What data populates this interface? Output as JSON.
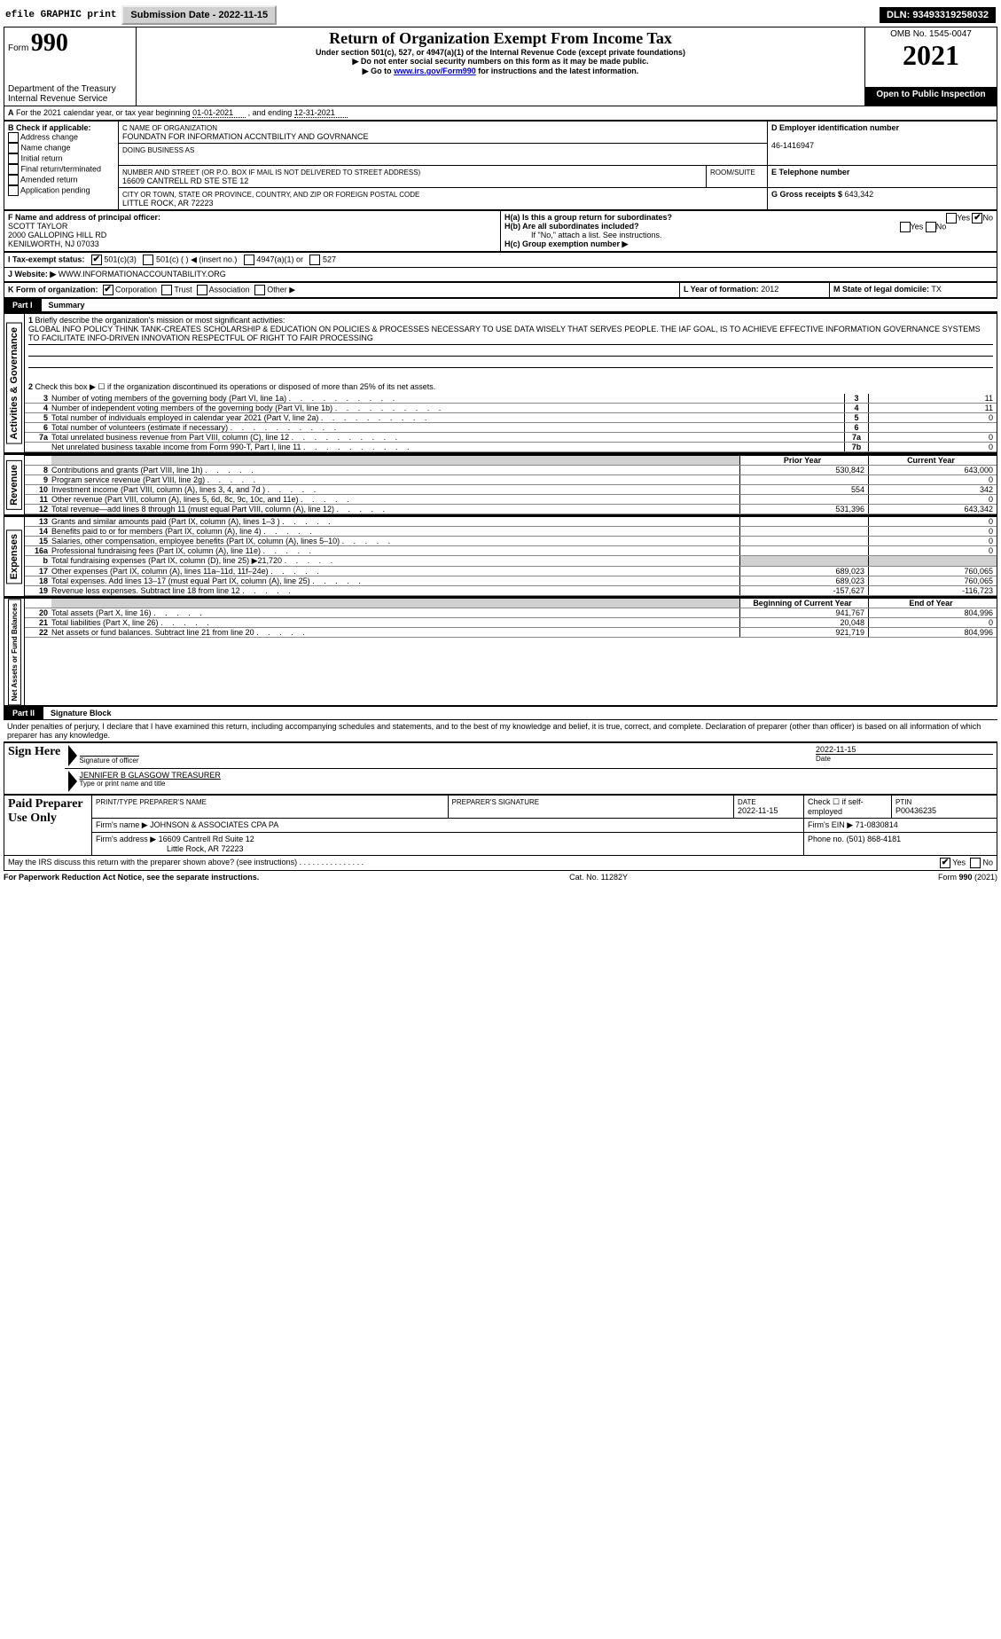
{
  "top": {
    "efile": "efile GRAPHIC print",
    "submission_btn": "Submission Date - 2022-11-15",
    "dln": "DLN: 93493319258032"
  },
  "header": {
    "form_prefix": "Form",
    "form_num": "990",
    "dept": "Department of the Treasury",
    "irs": "Internal Revenue Service",
    "title": "Return of Organization Exempt From Income Tax",
    "subtitle": "Under section 501(c), 527, or 4947(a)(1) of the Internal Revenue Code (except private foundations)",
    "note1": "▶ Do not enter social security numbers on this form as it may be made public.",
    "note2": "▶ Go to ",
    "irs_link": "www.irs.gov/Form990",
    "note2b": " for instructions and the latest information.",
    "omb": "OMB No. 1545-0047",
    "year": "2021",
    "open": "Open to Public Inspection"
  },
  "taxyear": {
    "line": "For the 2021 calendar year, or tax year beginning ",
    "begin": "01-01-2021",
    "mid": " , and ending ",
    "end": "12-31-2021"
  },
  "boxB": {
    "label": "B Check if applicable:",
    "opts": [
      "Address change",
      "Name change",
      "Initial return",
      "Final return/terminated",
      "Amended return",
      "Application pending"
    ]
  },
  "boxC": {
    "label": "C Name of organization",
    "name": "FOUNDATN FOR INFORMATION ACCNTBILITY AND GOVRNANCE",
    "dba_label": "Doing business as",
    "street_label": "Number and street (or P.O. box if mail is not delivered to street address)",
    "street": "16609 CANTRELL RD STE STE 12",
    "room_label": "Room/suite",
    "city_label": "City or town, state or province, country, and ZIP or foreign postal code",
    "city": "LITTLE ROCK, AR  72223"
  },
  "boxD": {
    "label": "D Employer identification number",
    "ein": "46-1416947"
  },
  "boxE": {
    "label": "E Telephone number"
  },
  "boxG": {
    "label": "G Gross receipts $",
    "val": "643,342"
  },
  "boxF": {
    "label": "F Name and address of principal officer:",
    "name": "SCOTT TAYLOR",
    "addr1": "2000 GALLOPING HILL RD",
    "addr2": "KENILWORTH, NJ  07033"
  },
  "boxH": {
    "a": "H(a)  Is this a group return for subordinates?",
    "b": "H(b)  Are all subordinates included?",
    "note": "If \"No,\" attach a list. See instructions.",
    "c": "H(c)  Group exemption number ▶"
  },
  "yesno": {
    "yes": "Yes",
    "no": "No"
  },
  "boxI": {
    "label": "I  Tax-exempt status:",
    "o1": "501(c)(3)",
    "o2": "501(c) (  ) ◀ (insert no.)",
    "o3": "4947(a)(1) or",
    "o4": "527"
  },
  "boxJ": {
    "label": "J  Website: ▶",
    "url": "WWW.INFORMATIONACCOUNTABILITY.ORG"
  },
  "boxK": {
    "label": "K Form of organization:",
    "o1": "Corporation",
    "o2": "Trust",
    "o3": "Association",
    "o4": "Other ▶"
  },
  "boxL": {
    "label": "L Year of formation:",
    "val": "2012"
  },
  "boxM": {
    "label": "M State of legal domicile:",
    "val": "TX"
  },
  "part1": {
    "label": "Part I",
    "title": "Summary",
    "q1_label": "1",
    "q1": "Briefly describe the organization's mission or most significant activities:",
    "q1_text": "GLOBAL INFO POLICY THINK TANK-CREATES SCHOLARSHIP & EDUCATION ON POLICIES & PROCESSES NECESSARY TO USE DATA WISELY THAT SERVES PEOPLE. THE IAF GOAL, IS TO ACHIEVE EFFECTIVE INFORMATION GOVERNANCE SYSTEMS TO FACILITATE INFO-DRIVEN INNOVATION RESPECTFUL OF RIGHT TO FAIR PROCESSING",
    "q2": "Check this box ▶ ☐ if the organization discontinued its operations or disposed of more than 25% of its net assets.",
    "sidelabel_ag": "Activities & Governance",
    "sidelabel_rev": "Revenue",
    "sidelabel_exp": "Expenses",
    "sidelabel_na": "Net Assets or Fund Balances",
    "rows_gov": [
      {
        "n": "3",
        "label": "Number of voting members of the governing body (Part VI, line 1a)",
        "box": "3",
        "val": "11"
      },
      {
        "n": "4",
        "label": "Number of independent voting members of the governing body (Part VI, line 1b)",
        "box": "4",
        "val": "11"
      },
      {
        "n": "5",
        "label": "Total number of individuals employed in calendar year 2021 (Part V, line 2a)",
        "box": "5",
        "val": "0"
      },
      {
        "n": "6",
        "label": "Total number of volunteers (estimate if necessary)",
        "box": "6",
        "val": ""
      },
      {
        "n": "7a",
        "label": "Total unrelated business revenue from Part VIII, column (C), line 12",
        "box": "7a",
        "val": "0"
      },
      {
        "n": "",
        "label": "Net unrelated business taxable income from Form 990-T, Part I, line 11",
        "box": "7b",
        "val": "0"
      }
    ],
    "header_prior": "Prior Year",
    "header_curr": "Current Year",
    "rows_rev": [
      {
        "n": "8",
        "label": "Contributions and grants (Part VIII, line 1h)",
        "prior": "530,842",
        "curr": "643,000"
      },
      {
        "n": "9",
        "label": "Program service revenue (Part VIII, line 2g)",
        "prior": "",
        "curr": "0"
      },
      {
        "n": "10",
        "label": "Investment income (Part VIII, column (A), lines 3, 4, and 7d )",
        "prior": "554",
        "curr": "342"
      },
      {
        "n": "11",
        "label": "Other revenue (Part VIII, column (A), lines 5, 6d, 8c, 9c, 10c, and 11e)",
        "prior": "",
        "curr": "0"
      },
      {
        "n": "12",
        "label": "Total revenue—add lines 8 through 11 (must equal Part VIII, column (A), line 12)",
        "prior": "531,396",
        "curr": "643,342"
      }
    ],
    "rows_exp": [
      {
        "n": "13",
        "label": "Grants and similar amounts paid (Part IX, column (A), lines 1–3 )",
        "prior": "",
        "curr": "0"
      },
      {
        "n": "14",
        "label": "Benefits paid to or for members (Part IX, column (A), line 4)",
        "prior": "",
        "curr": "0"
      },
      {
        "n": "15",
        "label": "Salaries, other compensation, employee benefits (Part IX, column (A), lines 5–10)",
        "prior": "",
        "curr": "0"
      },
      {
        "n": "16a",
        "label": "Professional fundraising fees (Part IX, column (A), line 11e)",
        "prior": "",
        "curr": "0"
      },
      {
        "n": "b",
        "label": "Total fundraising expenses (Part IX, column (D), line 25) ▶21,720",
        "prior": "gray",
        "curr": "gray"
      },
      {
        "n": "17",
        "label": "Other expenses (Part IX, column (A), lines 11a–11d, 11f–24e)",
        "prior": "689,023",
        "curr": "760,065"
      },
      {
        "n": "18",
        "label": "Total expenses. Add lines 13–17 (must equal Part IX, column (A), line 25)",
        "prior": "689,023",
        "curr": "760,065"
      },
      {
        "n": "19",
        "label": "Revenue less expenses. Subtract line 18 from line 12",
        "prior": "-157,627",
        "curr": "-116,723"
      }
    ],
    "header_begin": "Beginning of Current Year",
    "header_end": "End of Year",
    "rows_na": [
      {
        "n": "20",
        "label": "Total assets (Part X, line 16)",
        "prior": "941,767",
        "curr": "804,996"
      },
      {
        "n": "21",
        "label": "Total liabilities (Part X, line 26)",
        "prior": "20,048",
        "curr": "0"
      },
      {
        "n": "22",
        "label": "Net assets or fund balances. Subtract line 21 from line 20",
        "prior": "921,719",
        "curr": "804,996"
      }
    ]
  },
  "part2": {
    "label": "Part II",
    "title": "Signature Block",
    "declaration": "Under penalties of perjury, I declare that I have examined this return, including accompanying schedules and statements, and to the best of my knowledge and belief, it is true, correct, and complete. Declaration of preparer (other than officer) is based on all information of which preparer has any knowledge.",
    "sign_here": "Sign Here",
    "sig_officer": "Signature of officer",
    "sig_date": "2022-11-15",
    "date_label": "Date",
    "officer_name": "JENNIFER B GLASGOW  TREASURER",
    "type_label": "Type or print name and title",
    "paid_label": "Paid Preparer Use Only",
    "col_name": "Print/Type preparer's name",
    "col_sig": "Preparer's signature",
    "col_date": "Date",
    "date_val": "2022-11-15",
    "check_self": "Check ☐ if self-employed",
    "ptin_label": "PTIN",
    "ptin": "P00436235",
    "firm_name_label": "Firm's name    ▶",
    "firm_name": "JOHNSON & ASSOCIATES CPA PA",
    "firm_ein_label": "Firm's EIN ▶",
    "firm_ein": "71-0830814",
    "firm_addr_label": "Firm's address ▶",
    "firm_addr1": "16609 Cantrell Rd Suite 12",
    "firm_addr2": "Little Rock, AR  72223",
    "phone_label": "Phone no.",
    "phone": "(501) 868-4181",
    "may_irs": "May the IRS discuss this return with the preparer shown above? (see instructions)"
  },
  "footer": {
    "pra": "For Paperwork Reduction Act Notice, see the separate instructions.",
    "cat": "Cat. No. 11282Y",
    "form": "Form 990 (2021)"
  }
}
